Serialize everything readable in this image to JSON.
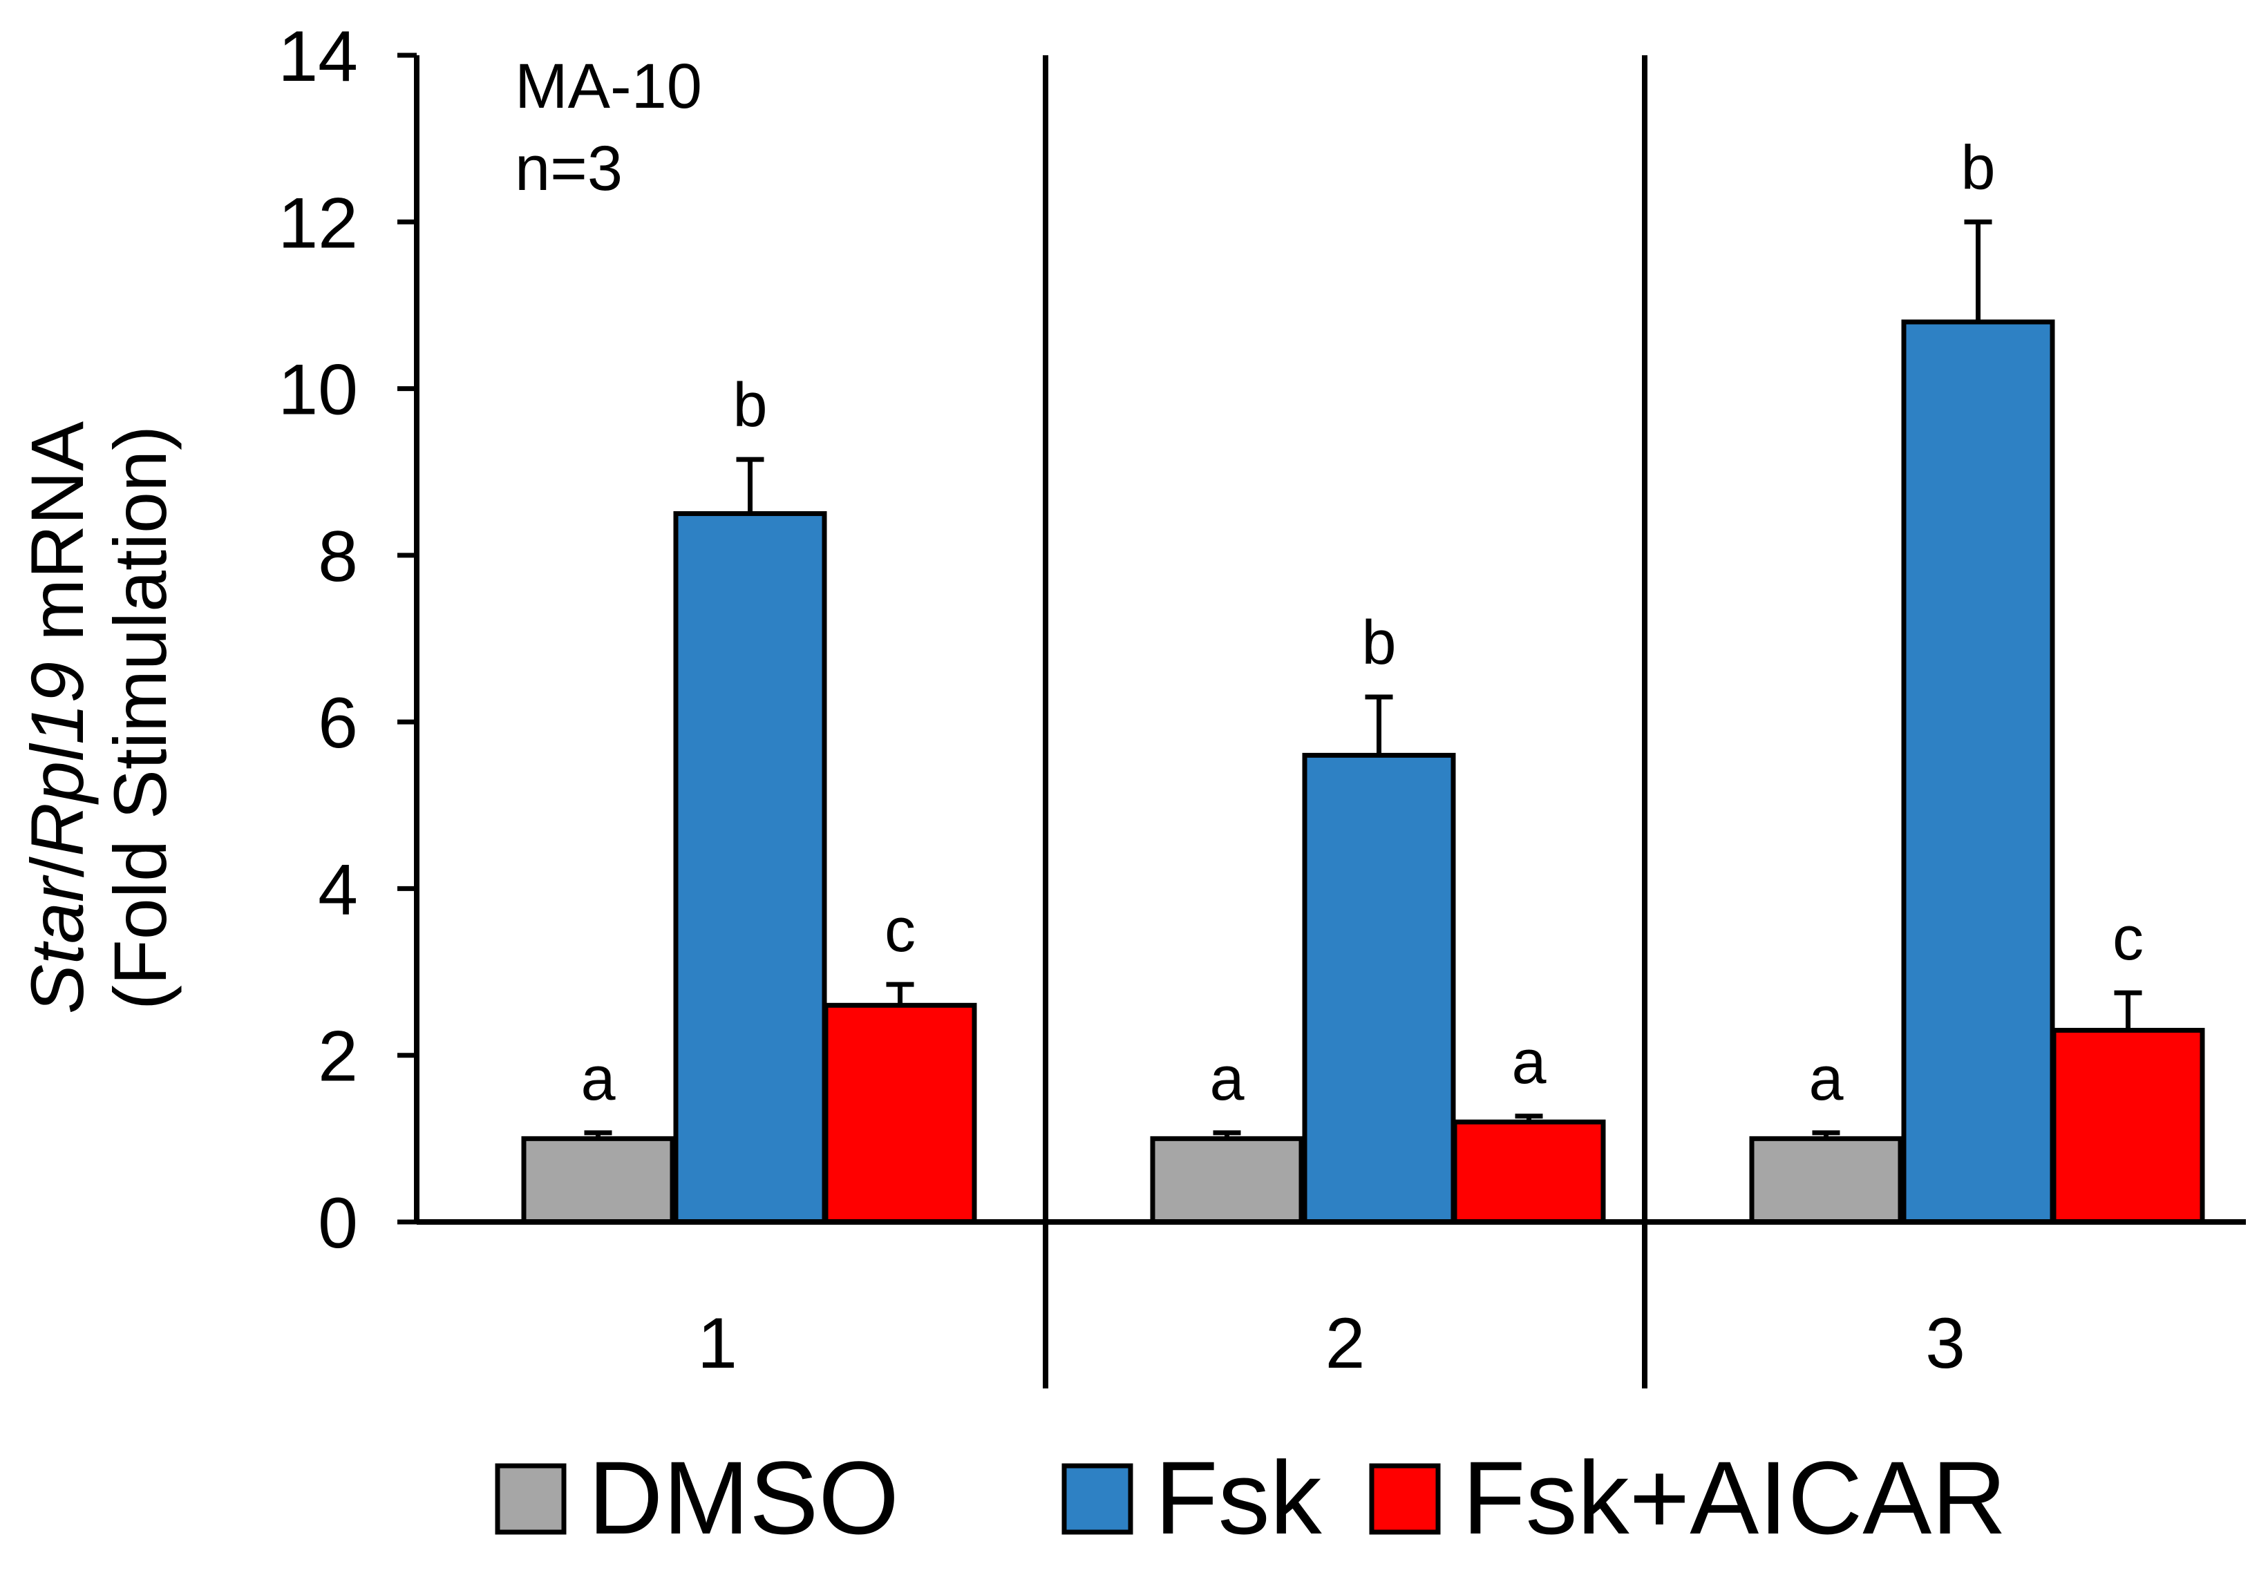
{
  "chart_data": {
    "type": "bar",
    "annotation": {
      "cell_line": "MA-10",
      "n": "n=3"
    },
    "ylabel": {
      "gene": "Star",
      "separator": "/",
      "reference": "Rpl19",
      "suffix": " mRNA",
      "line2": "(Fold Stimulation)"
    },
    "xlabel": "",
    "ylim": [
      0,
      14
    ],
    "yticks": [
      0,
      2,
      4,
      6,
      8,
      10,
      12,
      14
    ],
    "categories": [
      "1",
      "2",
      "3"
    ],
    "series": [
      {
        "name": "DMSO",
        "color": "#a6a6a6",
        "values": [
          1.0,
          1.0,
          1.0
        ],
        "errors": [
          0.07,
          0.07,
          0.07
        ],
        "significance": [
          "a",
          "a",
          "a"
        ]
      },
      {
        "name": "Fsk",
        "color": "#2e81c4",
        "values": [
          8.5,
          5.6,
          10.8
        ],
        "errors": [
          0.65,
          0.7,
          1.2
        ],
        "significance": [
          "b",
          "b",
          "b"
        ]
      },
      {
        "name": "Fsk+AICAR",
        "color": "#ff0000",
        "values": [
          2.6,
          1.2,
          2.3
        ],
        "errors": [
          0.25,
          0.07,
          0.45
        ],
        "significance": [
          "c",
          "a",
          "c"
        ]
      }
    ],
    "legend_position": "bottom"
  }
}
